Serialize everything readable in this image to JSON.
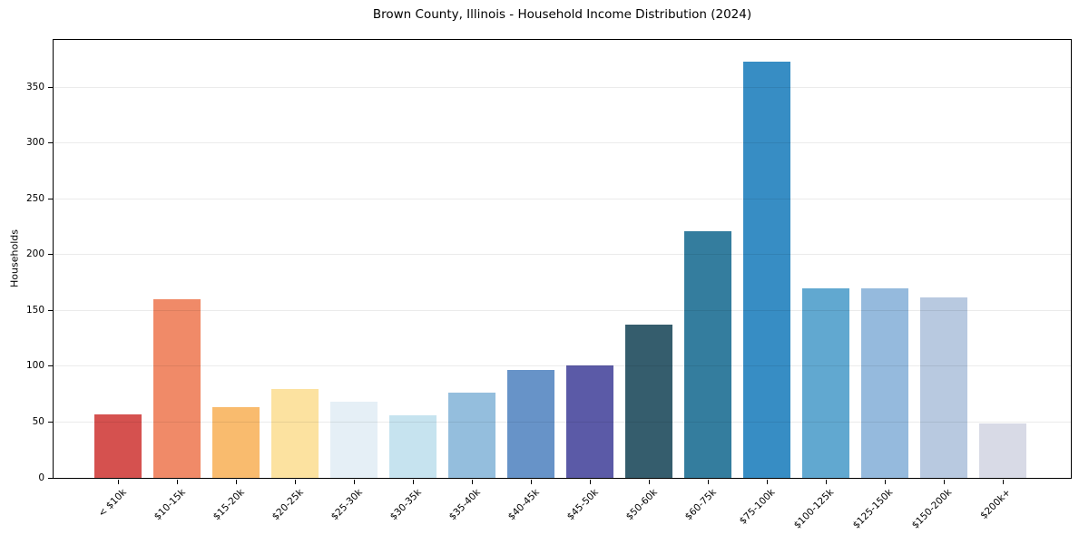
{
  "chart_data": {
    "type": "bar",
    "title": "Brown County, Illinois - Household Income Distribution (2024)",
    "xlabel": "",
    "ylabel": "Households",
    "categories": [
      "< $10k",
      "$10-15k",
      "$15-20k",
      "$20-25k",
      "$25-30k",
      "$30-35k",
      "$35-40k",
      "$40-45k",
      "$45-50k",
      "$50-60k",
      "$60-75k",
      "$75-100k",
      "$100-125k",
      "$125-150k",
      "$150-200k",
      "$200k+"
    ],
    "values": [
      57,
      160,
      63,
      80,
      68,
      56,
      76,
      97,
      101,
      137,
      221,
      373,
      170,
      170,
      162,
      49
    ],
    "bar_colors": [
      "#d5514f",
      "#f08a68",
      "#f9bb6e",
      "#fce2a0",
      "#e5eff6",
      "#c6e3ef",
      "#94bedd",
      "#6793c8",
      "#5b5aa7",
      "#355d6d",
      "#347d9e",
      "#378dc4",
      "#61a8d0",
      "#95badd",
      "#b8c9e0",
      "#d8dae6"
    ],
    "yticks": [
      0,
      50,
      100,
      150,
      200,
      250,
      300,
      350
    ],
    "ylim": [
      0,
      392.5
    ],
    "grid": "horizontal",
    "grid_above_bars": true,
    "legend": "none",
    "background_color": "#ffffff",
    "text_color": "#000000",
    "spine_color": "#000000",
    "gridline_color": "rgba(0,0,0,0.08)"
  }
}
